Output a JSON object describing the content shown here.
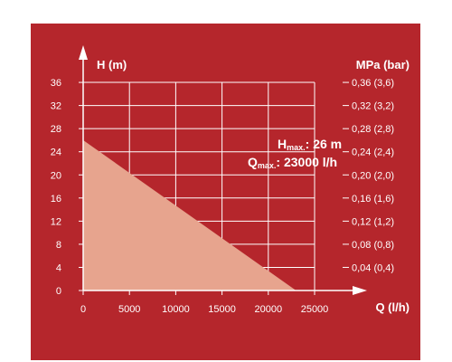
{
  "colors": {
    "background": "#b5262c",
    "foreground": "#ffffff",
    "curve_fill": "#e7a48e"
  },
  "chart_data": {
    "type": "area",
    "x": [
      0,
      23000
    ],
    "y": [
      26,
      0
    ],
    "xlim": [
      0,
      25000
    ],
    "ylim": [
      0,
      36
    ],
    "x_ticks": [
      0,
      5000,
      10000,
      15000,
      20000,
      25000
    ],
    "y_ticks": [
      0,
      4,
      8,
      12,
      16,
      20,
      24,
      28,
      32,
      36
    ],
    "xlabel": "Q (l/h)",
    "ylabel": "H (m)",
    "ylabel_right": "MPa (bar)",
    "right_ticks": [
      "",
      "0,04 (0,4)",
      "0,08 (0,8)",
      "0,12 (1,2)",
      "0,16 (1,6)",
      "0,20 (2,0)",
      "0,24 (2,4)",
      "0,28 (2,8)",
      "0,32 (3,2)",
      "0,36 (3,6)"
    ],
    "grid": true,
    "annotation": {
      "line1_main": "H",
      "line1_sub": "max.",
      "line1_value": ": 26 m",
      "line2_main": "Q",
      "line2_sub": "max.",
      "line2_value": ": 23000 l/h"
    }
  }
}
